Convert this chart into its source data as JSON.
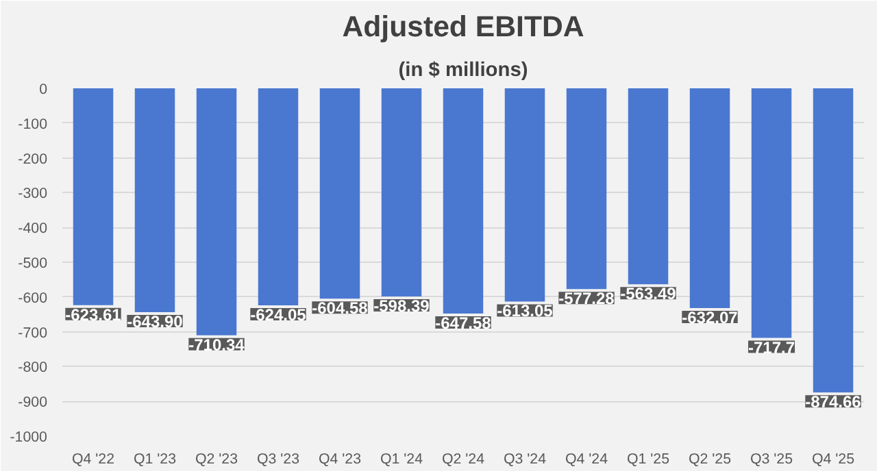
{
  "chart_data": {
    "type": "bar",
    "title": "Adjusted EBITDA",
    "subtitle": "(in $ millions)",
    "categories": [
      "Q4 '22",
      "Q1 '23",
      "Q2 '23",
      "Q3 '23",
      "Q4 '23",
      "Q1 '24",
      "Q2 '24",
      "Q3 '24",
      "Q4 '24",
      "Q1 '25",
      "Q2 '25",
      "Q3 '25",
      "Q4 '25"
    ],
    "values": [
      -623.61,
      -643.9,
      -710.34,
      -624.05,
      -604.58,
      -598.39,
      -647.58,
      -613.05,
      -577.28,
      -563.49,
      -632.07,
      -717.7,
      -874.66
    ],
    "value_labels": [
      "-623.61",
      "-643.90",
      "-710.34",
      "-624.05",
      "-604.58",
      "-598.39",
      "-647.58",
      "-613.05",
      "-577.28",
      "-563.49",
      "-632.07",
      "-717.7",
      "-874.66"
    ],
    "color": "#4a78d0",
    "ylim": [
      -1000,
      0
    ],
    "yticks": [
      0,
      -100,
      -200,
      -300,
      -400,
      -500,
      -600,
      -700,
      -800,
      -900,
      -1000
    ],
    "grid": "y"
  }
}
